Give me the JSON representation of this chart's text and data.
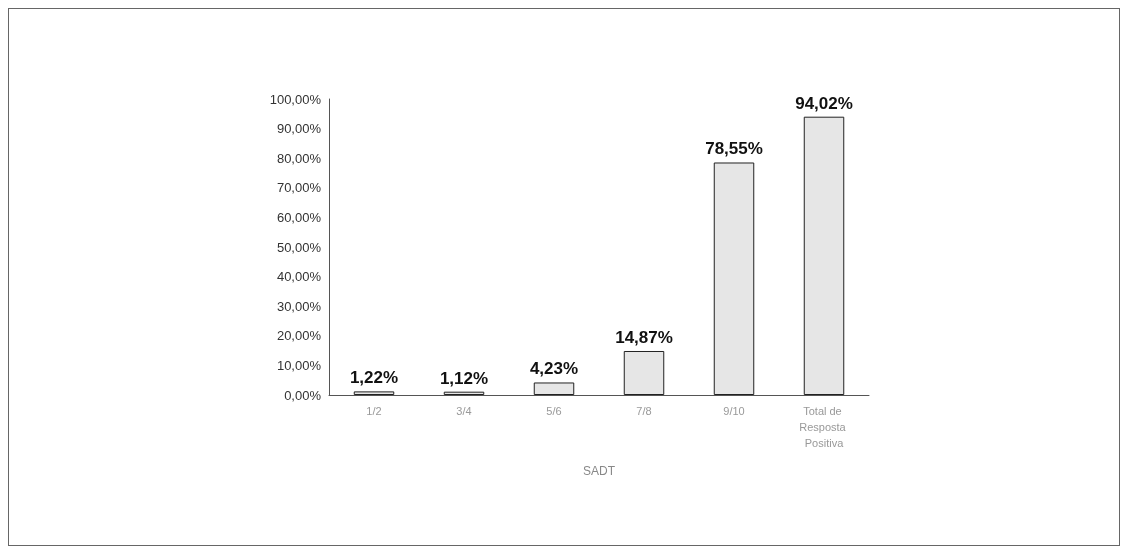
{
  "chart_data": {
    "type": "bar",
    "xlabel": "SADT",
    "categories": [
      "1/2",
      "3/4",
      "5/6",
      "7/8",
      "9/10",
      "Total de Resposta Positiva"
    ],
    "values": [
      1.22,
      1.12,
      4.23,
      14.87,
      78.55,
      94.02
    ],
    "value_labels": [
      "1,22%",
      "1,12%",
      "4,23%",
      "14,87%",
      "78,55%",
      "94,02%"
    ],
    "color": "#e6e6e6",
    "ylim": [
      0,
      100
    ],
    "yticks": [
      {
        "value": 0,
        "label": "0,00%"
      },
      {
        "value": 10,
        "label": "10,00%"
      },
      {
        "value": 20,
        "label": "20,00%"
      },
      {
        "value": 30,
        "label": "30,00%"
      },
      {
        "value": 40,
        "label": "40,00%"
      },
      {
        "value": 50,
        "label": "50,00%"
      },
      {
        "value": 60,
        "label": "60,00%"
      },
      {
        "value": 70,
        "label": "70,00%"
      },
      {
        "value": 80,
        "label": "80,00%"
      },
      {
        "value": 90,
        "label": "90,00%"
      },
      {
        "value": 100,
        "label": "100,00%"
      }
    ],
    "grid": false
  }
}
